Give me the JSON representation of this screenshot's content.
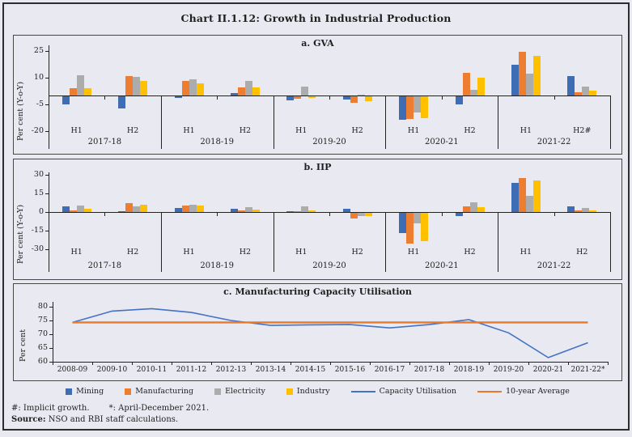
{
  "title": "Chart II.1.12: Growth in Industrial Production",
  "footnotes": {
    "implicit": "#: Implicit growth.",
    "april_dec": "*: April-December 2021.",
    "source_label": "Source:",
    "source_text": " NSO and RBI staff calculations."
  },
  "colors": {
    "mining": "#3E6CB5",
    "manufacturing": "#ED7D31",
    "electricity": "#ACACAC",
    "industry": "#FFC000",
    "capacity_line": "#4472C4",
    "average_line": "#E8782A",
    "ink": "#222222"
  },
  "legend": [
    {
      "label": "Mining",
      "type": "square",
      "color": "#3E6CB5"
    },
    {
      "label": "Manufacturing",
      "type": "square",
      "color": "#ED7D31"
    },
    {
      "label": "Electricity",
      "type": "square",
      "color": "#ACACAC"
    },
    {
      "label": "Industry",
      "type": "square",
      "color": "#FFC000"
    },
    {
      "label": "Capacity Utilisation",
      "type": "line",
      "color": "#4472C4"
    },
    {
      "label": "10-year Average",
      "type": "line",
      "color": "#E8782A"
    }
  ],
  "chart_data": [
    {
      "id": "gva",
      "type": "bar",
      "title": "a. GVA",
      "ylabel": "Per cent (Y-o-Y)",
      "yticks": [
        25,
        10,
        -5,
        -20
      ],
      "ylim": [
        -24,
        28
      ],
      "grid": false,
      "series_names": [
        "Mining",
        "Manufacturing",
        "Electricity",
        "Industry"
      ],
      "groups": [
        {
          "year": "2017-18",
          "halves": [
            {
              "label": "H1",
              "values": [
                -4.3,
                4.3,
                11.5,
                4.0
              ]
            },
            {
              "label": "H2",
              "values": [
                -6.6,
                10.9,
                10.4,
                8.2
              ]
            }
          ]
        },
        {
          "year": "2018-19",
          "halves": [
            {
              "label": "H1",
              "values": [
                -1.0,
                8.2,
                9.2,
                7.0
              ]
            },
            {
              "label": "H2",
              "values": [
                1.5,
                4.5,
                8.0,
                4.6
              ]
            }
          ]
        },
        {
          "year": "2019-20",
          "halves": [
            {
              "label": "H1",
              "values": [
                -2.1,
                -1.4,
                4.9,
                -0.8
              ]
            },
            {
              "label": "H2",
              "values": [
                -2.0,
                -3.4,
                0.4,
                -2.8
              ]
            }
          ]
        },
        {
          "year": "2020-21",
          "halves": [
            {
              "label": "H1",
              "values": [
                -13.1,
                -12.8,
                -9.2,
                -12.4
              ]
            },
            {
              "label": "H2",
              "values": [
                -4.4,
                12.9,
                3.1,
                10.0
              ]
            }
          ]
        },
        {
          "year": "2021-22",
          "halves": [
            {
              "label": "H1",
              "values": [
                17.4,
                24.3,
                12.3,
                22.0
              ]
            },
            {
              "label": "H2#",
              "values": [
                10.8,
                1.7,
                5.2,
                2.8
              ]
            }
          ]
        }
      ]
    },
    {
      "id": "iip",
      "type": "bar",
      "title": "b. IIP",
      "ylabel": "Per cent (Y-o-Y)",
      "yticks": [
        30,
        15,
        0,
        -15,
        -30
      ],
      "ylim": [
        -38,
        32
      ],
      "grid": false,
      "series_names": [
        "Mining",
        "Manufacturing",
        "Electricity",
        "Industry"
      ],
      "groups": [
        {
          "year": "2017-18",
          "halves": [
            {
              "label": "H1",
              "values": [
                4.3,
                1.6,
                5.5,
                2.5
              ]
            },
            {
              "label": "H2",
              "values": [
                0.9,
                7.5,
                4.5,
                6.1
              ]
            }
          ]
        },
        {
          "year": "2018-19",
          "halves": [
            {
              "label": "H1",
              "values": [
                3.2,
                5.2,
                5.9,
                5.0
              ]
            },
            {
              "label": "H2",
              "values": [
                2.5,
                1.4,
                3.9,
                1.8
              ]
            }
          ]
        },
        {
          "year": "2019-20",
          "halves": [
            {
              "label": "H1",
              "values": [
                0.9,
                0.7,
                4.3,
                1.4
              ]
            },
            {
              "label": "H2",
              "values": [
                2.5,
                -4.5,
                -2.5,
                -2.3
              ]
            }
          ]
        },
        {
          "year": "2020-21",
          "halves": [
            {
              "label": "H1",
              "values": [
                -16.4,
                -24.5,
                -8.6,
                -22.7
              ]
            },
            {
              "label": "H2",
              "values": [
                -2.3,
                4.5,
                7.7,
                4.1
              ]
            }
          ]
        },
        {
          "year": "2021-22",
          "halves": [
            {
              "label": "H1",
              "values": [
                23.6,
                27.3,
                13.4,
                25.2
              ]
            },
            {
              "label": "H2",
              "values": [
                4.8,
                1.1,
                3.2,
                1.6
              ]
            }
          ]
        }
      ]
    },
    {
      "id": "cu",
      "type": "line",
      "title": "c. Manufacturing Capacity Utilisation",
      "ylabel": "Per cent",
      "yticks": [
        80,
        75,
        70,
        65,
        60
      ],
      "ylim": [
        60,
        82
      ],
      "grid": false,
      "x": [
        "2008-09",
        "2009-10",
        "2010-11",
        "2011-12",
        "2012-13",
        "2013-14",
        "2014-15",
        "2015-16",
        "2016-17",
        "2017-18",
        "2018-19",
        "2019-20",
        "2020-21",
        "2021-22*"
      ],
      "series": [
        {
          "name": "Capacity Utilisation",
          "color": "#4472C4",
          "values": [
            74.3,
            78.4,
            79.3,
            77.9,
            75.0,
            73.2,
            73.4,
            73.5,
            72.3,
            73.5,
            75.3,
            70.5,
            61.5,
            66.9
          ]
        },
        {
          "name": "10-year Average",
          "color": "#E8782A",
          "constant": 74.3
        }
      ]
    }
  ]
}
